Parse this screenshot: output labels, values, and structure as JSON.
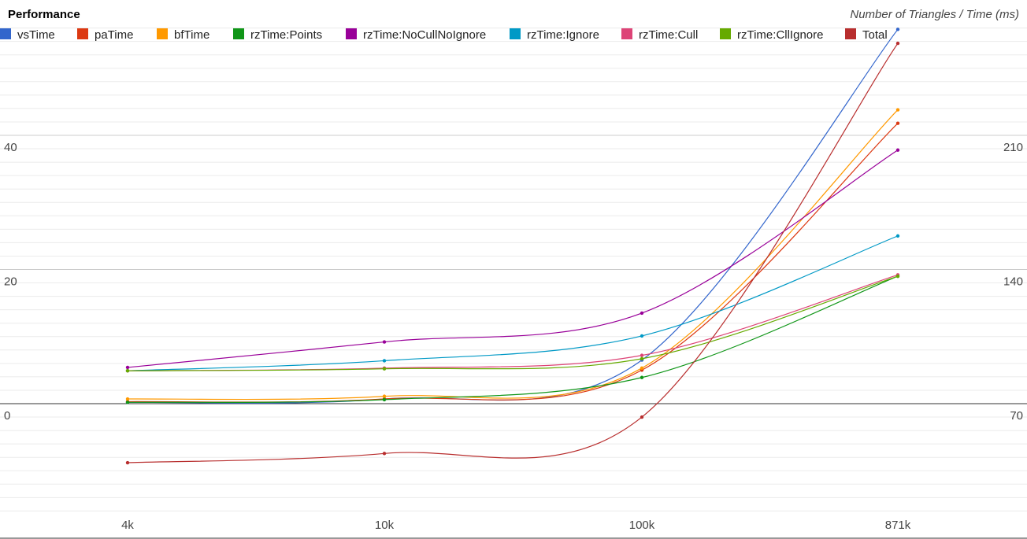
{
  "chart_data": {
    "type": "line",
    "title": "Performance",
    "subtitle": "Number of Triangles / Time (ms)",
    "categories": [
      "4k",
      "10k",
      "100k",
      "871k"
    ],
    "left_axis": {
      "ticks": [
        0,
        20,
        40
      ],
      "range": [
        -16,
        60
      ]
    },
    "right_axis": {
      "ticks": [
        70,
        140,
        210
      ],
      "range": [
        14,
        280
      ]
    },
    "grid": true,
    "legend_position": "top",
    "series": [
      {
        "name": "vsTime",
        "color": "#3366cc",
        "axis": "left",
        "values": [
          0.2,
          0.7,
          6.5,
          55.8
        ]
      },
      {
        "name": "paTime",
        "color": "#dc3912",
        "axis": "left",
        "values": [
          0.3,
          0.7,
          5.0,
          41.8
        ]
      },
      {
        "name": "bfTime",
        "color": "#ff9900",
        "axis": "left",
        "values": [
          0.7,
          1.1,
          5.3,
          43.8
        ]
      },
      {
        "name": "rzTime:Points",
        "color": "#109618",
        "axis": "left",
        "values": [
          0.2,
          0.6,
          3.9,
          19.0
        ]
      },
      {
        "name": "rzTime:NoCullNoIgnore",
        "color": "#990099",
        "axis": "left",
        "values": [
          5.4,
          9.2,
          13.5,
          37.8
        ]
      },
      {
        "name": "rzTime:Ignore",
        "color": "#0099c6",
        "axis": "left",
        "values": [
          4.9,
          6.4,
          10.1,
          25.0
        ]
      },
      {
        "name": "rzTime:Cull",
        "color": "#dd4477",
        "axis": "left",
        "values": [
          4.9,
          5.3,
          7.2,
          19.2
        ]
      },
      {
        "name": "rzTime:CllIgnore",
        "color": "#66aa00",
        "axis": "left",
        "values": [
          4.9,
          5.2,
          6.7,
          19.0
        ]
      },
      {
        "name": "Total",
        "color": "#b82e2e",
        "axis": "right",
        "values": [
          39.2,
          44.0,
          63.0,
          258.0
        ]
      }
    ]
  }
}
